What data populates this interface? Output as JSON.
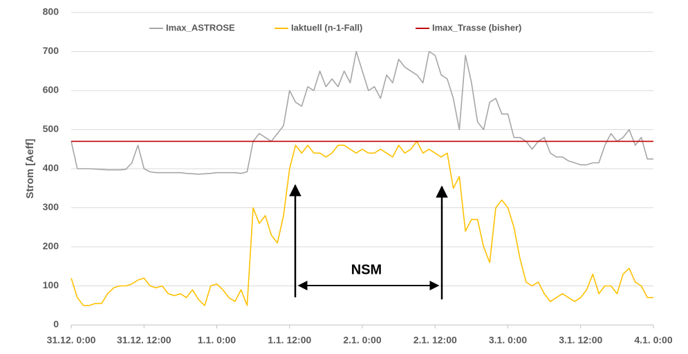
{
  "chart_data": {
    "type": "line",
    "y_label": "Strom [Aeff]",
    "annotations": [
      "NSM"
    ],
    "x": [
      0,
      1,
      2,
      3,
      4,
      5,
      6,
      7,
      8,
      9,
      10,
      11,
      12,
      13,
      14,
      15,
      16,
      17,
      18,
      19,
      20,
      21,
      22,
      23,
      24,
      25,
      26,
      27,
      28,
      29,
      30,
      31,
      32,
      33,
      34,
      35,
      36,
      37,
      38,
      39,
      40,
      41,
      42,
      43,
      44,
      45,
      46,
      47,
      48,
      49,
      50,
      51,
      52,
      53,
      54,
      55,
      56,
      57,
      58,
      59,
      60,
      61,
      62,
      63,
      64,
      65,
      66,
      67,
      68,
      69,
      70,
      71,
      72,
      73,
      74,
      75,
      76,
      77,
      78,
      79,
      80,
      81,
      82,
      83,
      84,
      85,
      86,
      87,
      88,
      89,
      90,
      91,
      92,
      93,
      94,
      95,
      96
    ],
    "xlim": [
      0,
      96
    ],
    "xticks": [
      {
        "value": 0,
        "label": "31.12. 0:00"
      },
      {
        "value": 12,
        "label": "31.12. 12:00"
      },
      {
        "value": 24,
        "label": "1.1. 0:00"
      },
      {
        "value": 36,
        "label": "1.1. 12:00"
      },
      {
        "value": 48,
        "label": "2.1. 0:00"
      },
      {
        "value": 60,
        "label": "2.1. 12:00"
      },
      {
        "value": 72,
        "label": "3.1. 0:00"
      },
      {
        "value": 84,
        "label": "3.1. 12:00"
      },
      {
        "value": 96,
        "label": "4.1. 0:00"
      }
    ],
    "ylim": [
      0,
      800
    ],
    "yticks": [
      0,
      100,
      200,
      300,
      400,
      500,
      600,
      700,
      800
    ],
    "grid": true,
    "series": [
      {
        "name": "Imax_ASTROSE",
        "color": "#a6a6a6",
        "values": [
          470,
          400,
          400,
          400,
          399,
          398,
          397,
          397,
          397,
          398,
          415,
          460,
          400,
          392,
          390,
          390,
          390,
          390,
          390,
          388,
          387,
          386,
          387,
          388,
          390,
          390,
          390,
          390,
          388,
          392,
          470,
          490,
          480,
          470,
          490,
          510,
          600,
          570,
          560,
          610,
          600,
          650,
          610,
          630,
          610,
          650,
          620,
          700,
          650,
          600,
          610,
          580,
          640,
          620,
          680,
          660,
          650,
          640,
          620,
          700,
          690,
          640,
          630,
          580,
          500,
          690,
          620,
          520,
          500,
          570,
          580,
          540,
          540,
          480,
          480,
          470,
          450,
          470,
          480,
          440,
          430,
          430,
          420,
          415,
          410,
          410,
          415,
          415,
          460,
          490,
          470,
          480,
          500,
          460,
          480,
          425,
          425
        ]
      },
      {
        "name": "Iaktuell (n-1-Fall)",
        "color": "#ffc000",
        "values": [
          120,
          70,
          50,
          50,
          55,
          55,
          80,
          95,
          100,
          100,
          105,
          115,
          120,
          100,
          95,
          100,
          80,
          75,
          80,
          70,
          90,
          65,
          50,
          100,
          105,
          90,
          70,
          60,
          90,
          50,
          300,
          260,
          280,
          230,
          210,
          280,
          400,
          460,
          440,
          460,
          440,
          440,
          430,
          440,
          460,
          460,
          450,
          440,
          450,
          440,
          440,
          450,
          440,
          430,
          460,
          440,
          450,
          470,
          440,
          450,
          440,
          430,
          440,
          350,
          380,
          240,
          270,
          270,
          200,
          160,
          300,
          320,
          300,
          250,
          170,
          110,
          100,
          110,
          80,
          60,
          70,
          80,
          70,
          60,
          70,
          90,
          130,
          80,
          100,
          100,
          80,
          130,
          145,
          110,
          100,
          70,
          70
        ]
      },
      {
        "name": "Imax_Trasse (bisher)",
        "color": "#c00000",
        "values": [
          470,
          470,
          470,
          470,
          470,
          470,
          470,
          470,
          470,
          470,
          470,
          470,
          470,
          470,
          470,
          470,
          470,
          470,
          470,
          470,
          470,
          470,
          470,
          470,
          470,
          470,
          470,
          470,
          470,
          470,
          470,
          470,
          470,
          470,
          470,
          470,
          470,
          470,
          470,
          470,
          470,
          470,
          470,
          470,
          470,
          470,
          470,
          470,
          470,
          470,
          470,
          470,
          470,
          470,
          470,
          470,
          470,
          470,
          470,
          470,
          470,
          470,
          470,
          470,
          470,
          470,
          470,
          470,
          470,
          470,
          470,
          470,
          470,
          470,
          470,
          470,
          470,
          470,
          470,
          470,
          470,
          470,
          470,
          470,
          470,
          470,
          470,
          470,
          470,
          470,
          470,
          470,
          470,
          470,
          470,
          470,
          470
        ]
      }
    ]
  }
}
